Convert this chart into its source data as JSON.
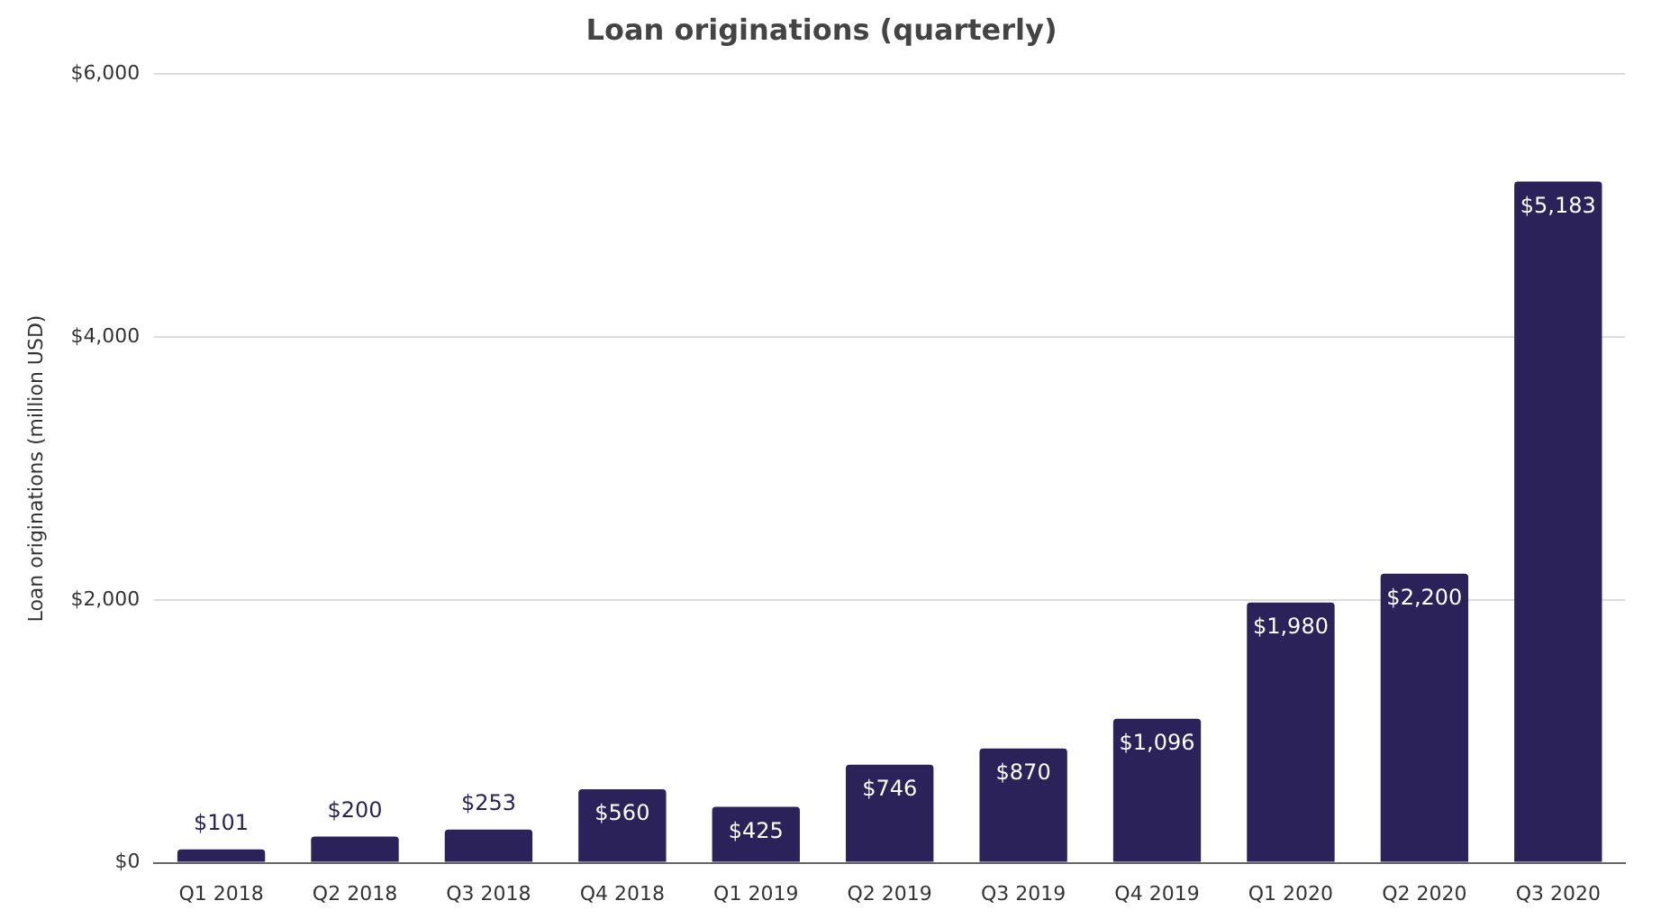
{
  "chart_data": {
    "type": "bar",
    "title": "Loan originations (quarterly)",
    "ylabel": "Loan originations (million USD)",
    "categories": [
      "Q1 2018",
      "Q2 2018",
      "Q3 2018",
      "Q4 2018",
      "Q1 2019",
      "Q2 2019",
      "Q3 2019",
      "Q4 2019",
      "Q1 2020",
      "Q2 2020",
      "Q3 2020"
    ],
    "values": [
      101,
      200,
      253,
      560,
      425,
      746,
      870,
      1096,
      1980,
      2200,
      5183
    ],
    "value_labels": [
      "$101",
      "$200",
      "$253",
      "$560",
      "$425",
      "$746",
      "$870",
      "$1,096",
      "$1,980",
      "$2,200",
      "$5,183"
    ],
    "color": "#2a2258",
    "ylim": [
      0,
      6000
    ],
    "yticks": [
      {
        "value": 0,
        "label": "$0"
      },
      {
        "value": 2000,
        "label": "$2,000"
      },
      {
        "value": 4000,
        "label": "$4,000"
      },
      {
        "value": 6000,
        "label": "$6,000"
      }
    ],
    "grid": "y",
    "legend": false
  }
}
